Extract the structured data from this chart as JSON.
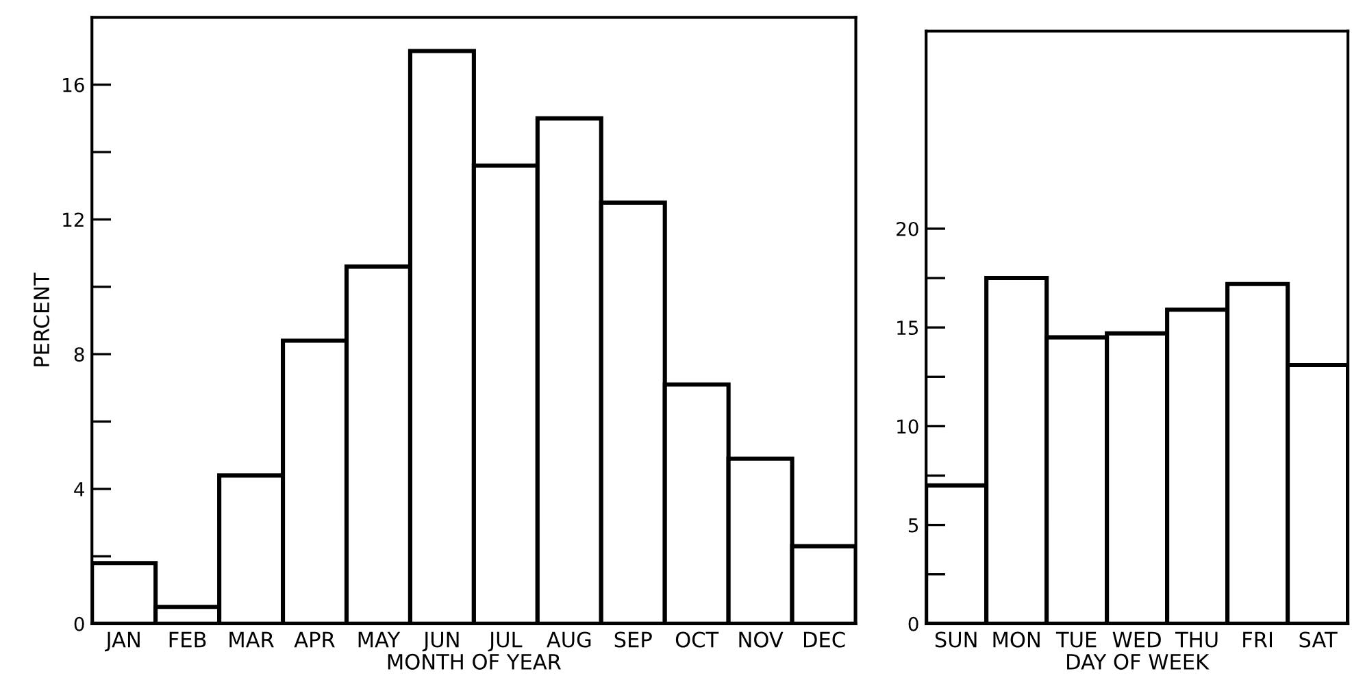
{
  "chart_data": [
    {
      "type": "bar",
      "xlabel": "MONTH OF YEAR",
      "ylabel": "PERCENT",
      "categories": [
        "JAN",
        "FEB",
        "MAR",
        "APR",
        "MAY",
        "JUN",
        "JUL",
        "AUG",
        "SEP",
        "OCT",
        "NOV",
        "DEC"
      ],
      "values": [
        1.8,
        0.5,
        4.4,
        8.4,
        10.6,
        17.0,
        13.6,
        15.0,
        12.5,
        7.1,
        4.9,
        2.3
      ],
      "color": "#ffffff",
      "ylim": [
        0,
        18
      ],
      "yticks": [
        0,
        {
          "value": 2,
          "label": null
        },
        4,
        {
          "value": 6,
          "label": null
        },
        8,
        {
          "value": 10,
          "label": null
        },
        12,
        {
          "value": 14,
          "label": null
        },
        16
      ],
      "grid": false
    },
    {
      "type": "bar",
      "xlabel": "DAY OF WEEK",
      "categories": [
        "SUN",
        "MON",
        "TUE",
        "WED",
        "THU",
        "FRI",
        "SAT"
      ],
      "values": [
        7.0,
        17.5,
        14.5,
        14.7,
        15.9,
        17.2,
        13.1
      ],
      "color": "#ffffff",
      "ylim": [
        0,
        30
      ],
      "yticks": [
        0,
        {
          "value": 2.5,
          "label": null
        },
        5,
        {
          "value": 7.5,
          "label": null
        },
        10,
        {
          "value": 12.5,
          "label": null
        },
        15,
        {
          "value": 17.5,
          "label": null
        },
        20
      ],
      "grid": false
    }
  ]
}
